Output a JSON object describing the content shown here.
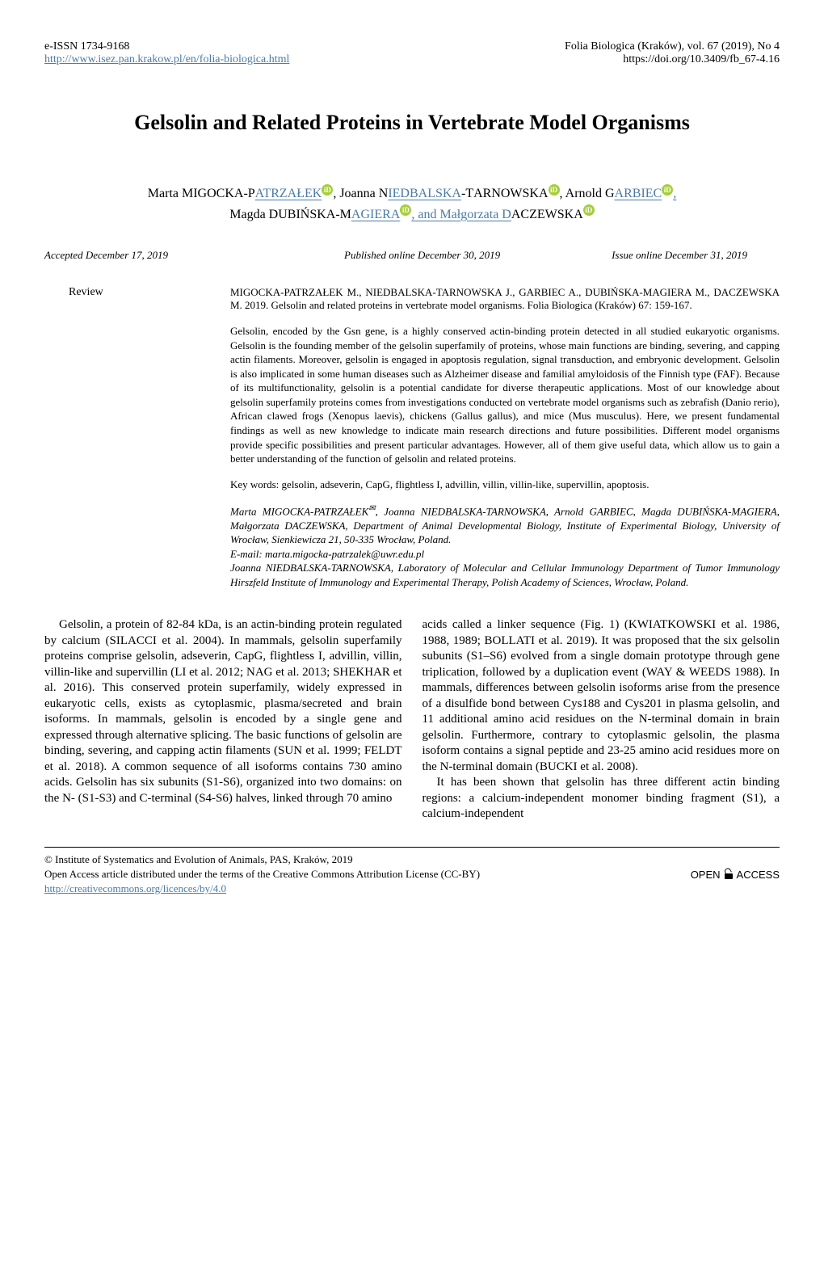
{
  "header": {
    "eissn": "e-ISSN 1734-9168",
    "journal_url": "http://www.isez.pan.krakow.pl/en/folia-biologica.html",
    "journal_info": "Folia Biologica (Kraków), vol. 67 (2019), No 4",
    "doi": "https://doi.org/10.3409/fb_67-4.16"
  },
  "title": "Gelsolin and Related Proteins in Vertebrate Model Organisms",
  "authors": {
    "line1_part1": "Marta M",
    "line1_name1": "IGOCKA",
    "line1_part2": "-P",
    "line1_name2": "ATRZAŁEK",
    "line1_part3": ", Joanna N",
    "line1_name3": "IEDBALSKA",
    "line1_part4": "-T",
    "line1_name4": "ARNOWSKA",
    "line1_part5": ", Arnold G",
    "line1_name5": "ARBIEC",
    "line1_comma": ",",
    "line2_part1": "Magda D",
    "line2_name1": "UBIŃSKA",
    "line2_part2": "-M",
    "line2_name2": "AGIERA",
    "line2_part3": ", and Małgorzata D",
    "line2_name3": "ACZEWSKA"
  },
  "dates": {
    "accepted": "Accepted December 17, 2019",
    "published": "Published online December 30, 2019",
    "issue": "Issue online December 31, 2019"
  },
  "review_label": "Review",
  "citation": "MIGOCKA-PATRZAŁEK M., NIEDBALSKA-TARNOWSKA J., GARBIEC A., DUBIŃSKA-MAGIERA M., DACZEWSKA M. 2019. Gelsolin and related proteins in vertebrate model organisms. Folia Biologica (Kraków) 67: 159-167.",
  "abstract": "Gelsolin, encoded by the Gsn gene, is a highly conserved actin-binding protein detected in all studied eukaryotic organisms. Gelsolin is the founding member of the gelsolin superfamily of proteins, whose main functions are binding, severing, and capping actin filaments. Moreover, gelsolin is engaged in apoptosis regulation, signal transduction, and embryonic development. Gelsolin is also implicated in some human diseases such as Alzheimer disease and familial amyloidosis of the Finnish type (FAF). Because of its multifunctionality, gelsolin is a potential candidate for diverse therapeutic applications. Most of our knowledge about gelsolin superfamily proteins comes from investigations conducted on vertebrate model organisms such as zebrafish (Danio rerio), African clawed frogs (Xenopus laevis), chickens (Gallus gallus), and mice (Mus musculus). Here, we present fundamental findings as well as new knowledge to indicate main research directions and future possibilities. Different model organisms provide specific possibilities and present particular advantages. However, all of them give useful data, which allow us to gain a better understanding of the function of gelsolin and related proteins.",
  "keywords": "Key words: gelsolin, adseverin, CapG, flightless I, advillin, villin, villin-like, supervillin, apoptosis.",
  "affiliation": {
    "line1": "Marta MIGOCKA-PATRZAŁEK",
    "line1b": ", Joanna NIEDBALSKA-TARNOWSKA, Arnold GARBIEC, Magda DUBIŃSKA-MAGIERA, Małgorzata DACZEWSKA, Department of Animal Developmental Biology, Institute of Experimental Biology, University of Wrocław, Sienkiewicza 21, 50-335 Wrocław, Poland.",
    "email": "E-mail: marta.migocka-patrzalek@uwr.edu.pl",
    "line2": "Joanna NIEDBALSKA-TARNOWSKA, Laboratory of Molecular and Cellular Immunology Department of Tumor Immunology Hirszfeld Institute of Immunology and Experimental Therapy, Polish Academy of Sciences, Wrocław, Poland."
  },
  "body": {
    "col1": "Gelsolin, a protein of 82-84 kDa, is an actin-binding protein regulated by calcium (SILACCI et al. 2004). In mammals, gelsolin superfamily proteins comprise gelsolin, adseverin, CapG, flightless I, advillin, villin, villin-like and supervillin (LI et al. 2012; NAG et al. 2013; SHEKHAR et al. 2016). This conserved protein superfamily, widely expressed in eukaryotic cells, exists as cytoplasmic, plasma/secreted and brain isoforms. In mammals, gelsolin is encoded by a single gene and expressed through alternative splicing. The basic functions of gelsolin are binding, severing, and capping actin filaments (SUN et al. 1999; FELDT et al. 2018). A common sequence of all isoforms contains 730 amino acids. Gelsolin has six subunits (S1-S6), organized into two domains: on the N- (S1-S3) and C-terminal (S4-S6) halves, linked through 70 amino",
    "col2_p1": "acids called a linker sequence (Fig. 1) (KWIATKOWSKI et al. 1986, 1988, 1989; BOLLATI et al. 2019). It was proposed that the six gelsolin subunits (S1–S6) evolved from a single domain prototype through gene triplication, followed by a duplication event (WAY & WEEDS 1988). In mammals, differences between gelsolin isoforms arise from the presence of a disulfide bond between Cys188 and Cys201 in plasma gelsolin, and 11 additional amino acid residues on the N-terminal domain in brain gelsolin. Furthermore, contrary to cytoplasmic gelsolin, the plasma isoform contains a signal peptide and 23-25 amino acid residues more on the N-terminal domain (BUCKI et al. 2008).",
    "col2_p2": "It has been shown that gelsolin has three different actin binding regions: a calcium-independent monomer binding fragment (S1), a calcium-independent"
  },
  "footer": {
    "copyright": "© Institute of Systematics and Evolution of Animals, PAS, Kraków, 2019",
    "license": "Open Access article distributed under the terms of the Creative Commons Attribution License (CC-BY)",
    "license_url": "http://creativecommons.org/licences/by/4.0",
    "open": "OPEN",
    "access": "ACCESS"
  }
}
